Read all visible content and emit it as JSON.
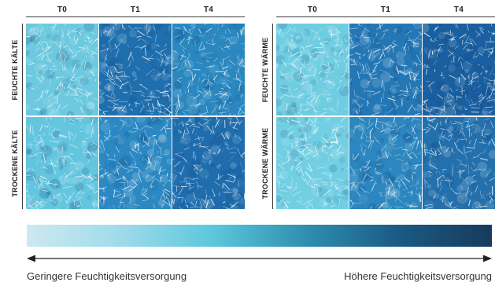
{
  "column_headers_left": [
    "T0",
    "T1",
    "T4"
  ],
  "column_headers_right": [
    "T0",
    "T1",
    "T4"
  ],
  "row_labels": {
    "feuchte_kaelte": "FEUCHTE KÄLTE",
    "trockene_kaelte": "TROCKENE KÄLTE",
    "feuchte_waerme": "FEUCHTE WÄRME",
    "trockene_waerme": "TROCKENE WÄRME"
  },
  "scale": {
    "colors": [
      "#cde9f1",
      "#9fdbea",
      "#5cc7dc",
      "#2f8fb0",
      "#1a5a84",
      "#183a5c"
    ],
    "left_label": "Geringere Feuchtigkeitsversorgung",
    "right_label": "Höhere Feuchtigkeitsversorgung"
  },
  "panel_colors": {
    "fk_t0": "#6cc9df",
    "fk_t1": "#1f6fae",
    "fk_t4": "#2a87bf",
    "tk_t0": "#64c6de",
    "tk_t1": "#2b88c2",
    "tk_t4": "#1f6dad",
    "fw_t0": "#6fcde2",
    "fw_t1": "#2477b5",
    "fw_t4": "#1a5f9f",
    "tw_t0": "#72cfe3",
    "tw_t1": "#2c86bf",
    "tw_t4": "#2370ad"
  }
}
